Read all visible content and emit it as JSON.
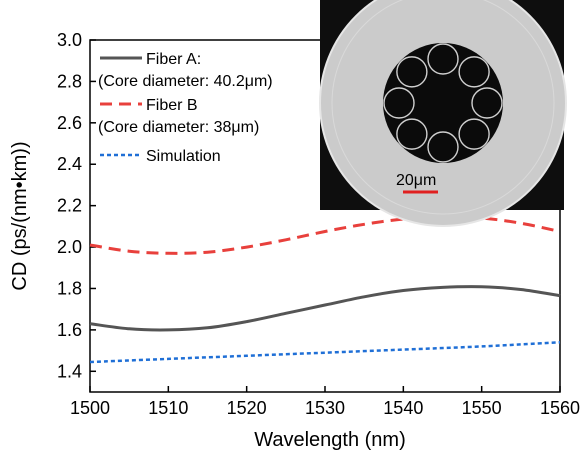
{
  "chart_data": {
    "type": "line",
    "xlabel": "Wavelength (nm)",
    "ylabel": "CD (ps/(nm•km))",
    "xlim": [
      1500,
      1560
    ],
    "ylim": [
      1.3,
      3.0
    ],
    "x_ticks": [
      "1500",
      "1510",
      "1520",
      "1530",
      "1540",
      "1550",
      "1560"
    ],
    "y_ticks": [
      "1.4",
      "1.6",
      "1.8",
      "2.0",
      "2.2",
      "2.4",
      "2.6",
      "2.8",
      "3.0"
    ],
    "grid": false,
    "legend_position": "top-left",
    "series": [
      {
        "name": "Fiber A:",
        "name_line2": "(Core diameter: 40.2μm)",
        "color": "#555555",
        "style": "solid",
        "x": [
          1500,
          1505,
          1510,
          1515,
          1520,
          1525,
          1530,
          1535,
          1540,
          1545,
          1550,
          1555,
          1560
        ],
        "y": [
          1.63,
          1.605,
          1.6,
          1.61,
          1.64,
          1.68,
          1.72,
          1.76,
          1.79,
          1.805,
          1.808,
          1.795,
          1.765
        ]
      },
      {
        "name": "Fiber B",
        "name_line2": "(Core diameter: 38μm)",
        "color": "#e8403c",
        "style": "dashed",
        "x": [
          1500,
          1505,
          1510,
          1515,
          1520,
          1525,
          1530,
          1535,
          1540,
          1545,
          1550,
          1555,
          1560
        ],
        "y": [
          2.01,
          1.98,
          1.97,
          1.975,
          2.0,
          2.035,
          2.075,
          2.11,
          2.135,
          2.145,
          2.14,
          2.115,
          2.075
        ]
      },
      {
        "name": "Simulation",
        "name_line2": "",
        "color": "#1f6fd6",
        "style": "dotted",
        "x": [
          1500,
          1510,
          1520,
          1530,
          1540,
          1550,
          1560
        ],
        "y": [
          1.445,
          1.46,
          1.475,
          1.49,
          1.505,
          1.52,
          1.54
        ]
      }
    ],
    "inset": {
      "scale_bar_label": "20μm",
      "scale_bar_color": "#e02020"
    }
  }
}
